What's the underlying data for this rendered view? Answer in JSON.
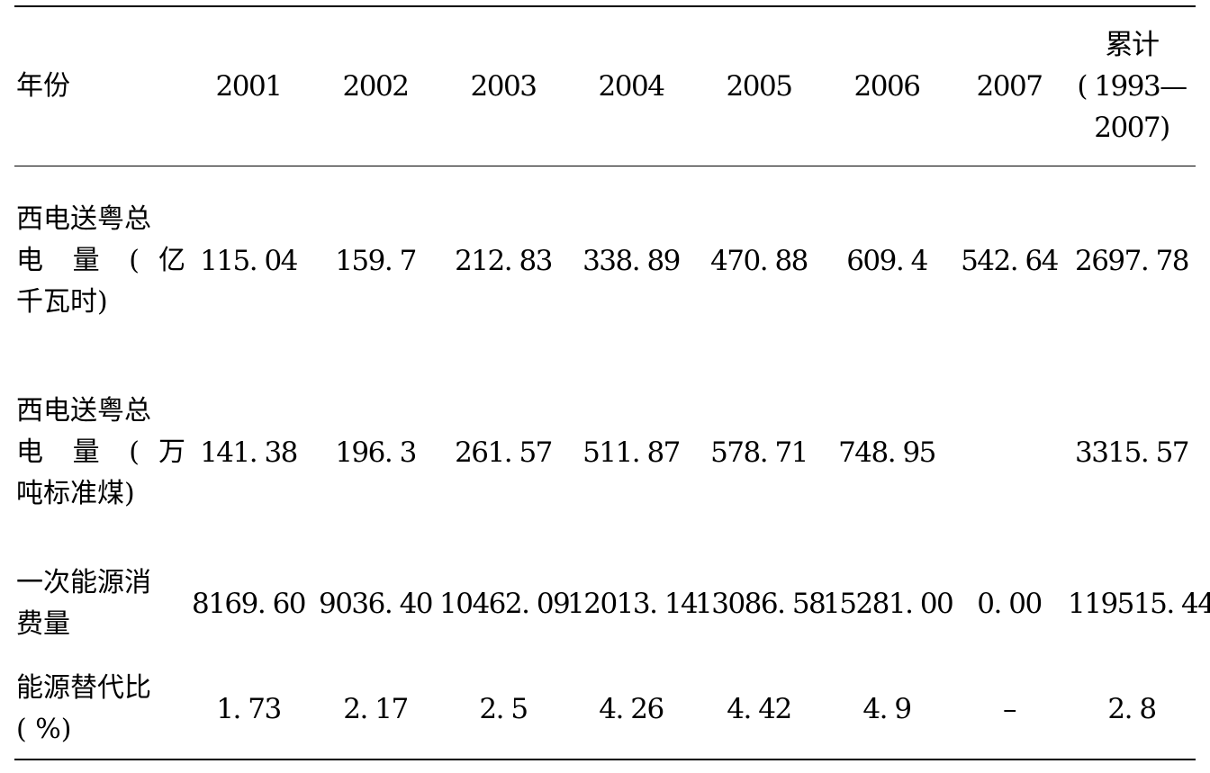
{
  "table": {
    "header": {
      "year_label": "年份",
      "years": [
        "2001",
        "2002",
        "2003",
        "2004",
        "2005",
        "2006",
        "2007"
      ],
      "cumulative_line1": "累计",
      "cumulative_line2": "( 1993—",
      "cumulative_line3": "2007)"
    },
    "rows": [
      {
        "label_line1": "西电送粤总",
        "label_line2": "电 量 ( 亿",
        "label_line3": "千瓦时)",
        "values": [
          "115. 04",
          "159. 7",
          "212. 83",
          "338. 89",
          "470. 88",
          "609. 4",
          "542. 64",
          "2697. 78"
        ]
      },
      {
        "label_line1": "西电送粤总",
        "label_line2": "电 量 ( 万",
        "label_line3": "吨标准煤)",
        "values": [
          "141. 38",
          "196. 3",
          "261. 57",
          "511. 87",
          "578. 71",
          "748. 95",
          "",
          "3315. 57"
        ]
      },
      {
        "label_line1": "一次能源消",
        "label_line2": "费量",
        "values": [
          "8169. 60",
          "9036. 40",
          "10462. 09",
          "12013. 14",
          "13086. 58",
          "15281. 00",
          "0. 00",
          "119515. 44"
        ]
      },
      {
        "label_line1": "能源替代比",
        "label_line2": "( %)",
        "values": [
          "1. 73",
          "2. 17",
          "2. 5",
          "4. 26",
          "4. 42",
          "4. 9",
          "–",
          "2. 8"
        ]
      }
    ]
  }
}
